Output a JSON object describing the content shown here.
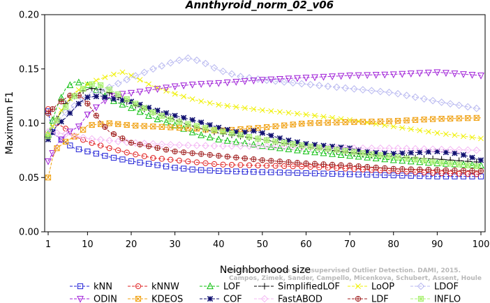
{
  "chart_data": {
    "type": "line",
    "title": "Annthyroid_norm_02_v06",
    "xlabel": "Neighborhood size",
    "ylabel": "Maximum F1",
    "xlim": [
      1,
      100
    ],
    "ylim": [
      0.0,
      0.2
    ],
    "xticks": [
      1,
      10,
      20,
      30,
      40,
      50,
      60,
      70,
      80,
      90,
      100
    ],
    "yticks": [
      "0.00",
      "0.05",
      "0.10",
      "0.15",
      "0.20"
    ],
    "grid": false,
    "legend_position": "bottom",
    "series": [
      {
        "name": "kNN",
        "color": "#1f1fd6",
        "marker": "square",
        "points": [
          [
            1,
            0.111
          ],
          [
            2,
            0.092
          ],
          [
            3,
            0.088
          ],
          [
            5,
            0.082
          ],
          [
            7,
            0.077
          ],
          [
            10,
            0.074
          ],
          [
            15,
            0.069
          ],
          [
            20,
            0.065
          ],
          [
            25,
            0.062
          ],
          [
            30,
            0.059
          ],
          [
            35,
            0.057
          ],
          [
            40,
            0.056
          ],
          [
            50,
            0.055
          ],
          [
            60,
            0.054
          ],
          [
            70,
            0.053
          ],
          [
            80,
            0.052
          ],
          [
            90,
            0.051
          ],
          [
            100,
            0.051
          ]
        ]
      },
      {
        "name": "kNNW",
        "color": "#e02020",
        "marker": "circle",
        "points": [
          [
            1,
            0.113
          ],
          [
            2,
            0.105
          ],
          [
            3,
            0.1
          ],
          [
            5,
            0.095
          ],
          [
            7,
            0.088
          ],
          [
            10,
            0.083
          ],
          [
            15,
            0.077
          ],
          [
            20,
            0.072
          ],
          [
            25,
            0.068
          ],
          [
            30,
            0.066
          ],
          [
            35,
            0.064
          ],
          [
            40,
            0.062
          ],
          [
            50,
            0.061
          ],
          [
            60,
            0.06
          ],
          [
            70,
            0.058
          ],
          [
            80,
            0.056
          ],
          [
            90,
            0.054
          ],
          [
            100,
            0.053
          ]
        ]
      },
      {
        "name": "LOF",
        "color": "#10c010",
        "marker": "triangle",
        "points": [
          [
            1,
            0.09
          ],
          [
            3,
            0.115
          ],
          [
            5,
            0.132
          ],
          [
            7,
            0.138
          ],
          [
            9,
            0.137
          ],
          [
            11,
            0.133
          ],
          [
            13,
            0.128
          ],
          [
            15,
            0.122
          ],
          [
            20,
            0.114
          ],
          [
            25,
            0.105
          ],
          [
            30,
            0.098
          ],
          [
            35,
            0.09
          ],
          [
            40,
            0.085
          ],
          [
            50,
            0.079
          ],
          [
            60,
            0.074
          ],
          [
            70,
            0.07
          ],
          [
            80,
            0.066
          ],
          [
            90,
            0.063
          ],
          [
            100,
            0.061
          ]
        ]
      },
      {
        "name": "SimplifiedLOF",
        "color": "#000000",
        "marker": "plus",
        "points": [
          [
            1,
            0.087
          ],
          [
            3,
            0.104
          ],
          [
            5,
            0.118
          ],
          [
            7,
            0.125
          ],
          [
            9,
            0.13
          ],
          [
            11,
            0.132
          ],
          [
            13,
            0.131
          ],
          [
            15,
            0.128
          ],
          [
            20,
            0.118
          ],
          [
            25,
            0.11
          ],
          [
            30,
            0.103
          ],
          [
            35,
            0.096
          ],
          [
            40,
            0.091
          ],
          [
            50,
            0.085
          ],
          [
            60,
            0.078
          ],
          [
            70,
            0.073
          ],
          [
            80,
            0.069
          ],
          [
            90,
            0.067
          ],
          [
            100,
            0.064
          ]
        ]
      },
      {
        "name": "LoOP",
        "color": "#f0f000",
        "marker": "x",
        "points": [
          [
            1,
            0.09
          ],
          [
            4,
            0.112
          ],
          [
            7,
            0.128
          ],
          [
            10,
            0.136
          ],
          [
            13,
            0.141
          ],
          [
            16,
            0.145
          ],
          [
            18,
            0.147
          ],
          [
            20,
            0.144
          ],
          [
            22,
            0.14
          ],
          [
            25,
            0.134
          ],
          [
            30,
            0.127
          ],
          [
            35,
            0.121
          ],
          [
            40,
            0.117
          ],
          [
            50,
            0.112
          ],
          [
            60,
            0.108
          ],
          [
            70,
            0.103
          ],
          [
            80,
            0.097
          ],
          [
            90,
            0.091
          ],
          [
            100,
            0.086
          ]
        ]
      },
      {
        "name": "LDOF",
        "color": "#b8b8f0",
        "marker": "diamond",
        "points": [
          [
            1,
            0.092
          ],
          [
            5,
            0.11
          ],
          [
            10,
            0.125
          ],
          [
            15,
            0.133
          ],
          [
            20,
            0.142
          ],
          [
            25,
            0.15
          ],
          [
            30,
            0.157
          ],
          [
            33,
            0.16
          ],
          [
            36,
            0.157
          ],
          [
            40,
            0.149
          ],
          [
            45,
            0.143
          ],
          [
            50,
            0.14
          ],
          [
            60,
            0.136
          ],
          [
            70,
            0.132
          ],
          [
            80,
            0.128
          ],
          [
            90,
            0.12
          ],
          [
            100,
            0.113
          ]
        ]
      },
      {
        "name": "ODIN",
        "color": "#a020d8",
        "marker": "triangle-down",
        "points": [
          [
            1,
            0.065
          ],
          [
            3,
            0.08
          ],
          [
            5,
            0.09
          ],
          [
            8,
            0.097
          ],
          [
            10,
            0.108
          ],
          [
            13,
            0.118
          ],
          [
            15,
            0.124
          ],
          [
            18,
            0.127
          ],
          [
            22,
            0.129
          ],
          [
            25,
            0.131
          ],
          [
            30,
            0.134
          ],
          [
            35,
            0.136
          ],
          [
            40,
            0.137
          ],
          [
            50,
            0.14
          ],
          [
            60,
            0.142
          ],
          [
            70,
            0.144
          ],
          [
            80,
            0.145
          ],
          [
            90,
            0.147
          ],
          [
            100,
            0.144
          ]
        ]
      },
      {
        "name": "KDEOS",
        "color": "#f0a010",
        "marker": "square-x",
        "points": [
          [
            1,
            0.05
          ],
          [
            2,
            0.068
          ],
          [
            3,
            0.077
          ],
          [
            5,
            0.083
          ],
          [
            8,
            0.09
          ],
          [
            10,
            0.098
          ],
          [
            15,
            0.1
          ],
          [
            20,
            0.098
          ],
          [
            25,
            0.097
          ],
          [
            30,
            0.096
          ],
          [
            35,
            0.095
          ],
          [
            40,
            0.093
          ],
          [
            50,
            0.096
          ],
          [
            60,
            0.1
          ],
          [
            70,
            0.101
          ],
          [
            80,
            0.102
          ],
          [
            90,
            0.104
          ],
          [
            100,
            0.105
          ]
        ]
      },
      {
        "name": "COF",
        "color": "#101070",
        "marker": "star",
        "points": [
          [
            1,
            0.085
          ],
          [
            3,
            0.098
          ],
          [
            5,
            0.105
          ],
          [
            8,
            0.118
          ],
          [
            10,
            0.124
          ],
          [
            13,
            0.125
          ],
          [
            15,
            0.123
          ],
          [
            20,
            0.12
          ],
          [
            25,
            0.113
          ],
          [
            30,
            0.107
          ],
          [
            35,
            0.102
          ],
          [
            40,
            0.096
          ],
          [
            45,
            0.091
          ],
          [
            48,
            0.093
          ],
          [
            50,
            0.091
          ],
          [
            55,
            0.085
          ],
          [
            60,
            0.081
          ],
          [
            65,
            0.079
          ],
          [
            70,
            0.077
          ],
          [
            75,
            0.073
          ],
          [
            80,
            0.072
          ],
          [
            85,
            0.073
          ],
          [
            90,
            0.074
          ],
          [
            95,
            0.072
          ],
          [
            100,
            0.066
          ]
        ]
      },
      {
        "name": "FastABOD",
        "color": "#f4b8f4",
        "marker": "diamond",
        "points": [
          [
            1,
            0.092
          ],
          [
            5,
            0.09
          ],
          [
            10,
            0.086
          ],
          [
            15,
            0.084
          ],
          [
            20,
            0.082
          ],
          [
            30,
            0.08
          ],
          [
            40,
            0.079
          ],
          [
            50,
            0.079
          ],
          [
            60,
            0.078
          ],
          [
            70,
            0.077
          ],
          [
            80,
            0.077
          ],
          [
            90,
            0.076
          ],
          [
            100,
            0.075
          ]
        ]
      },
      {
        "name": "LDF",
        "color": "#a02020",
        "marker": "circle-plus",
        "points": [
          [
            1,
            0.109
          ],
          [
            3,
            0.117
          ],
          [
            5,
            0.123
          ],
          [
            7,
            0.128
          ],
          [
            9,
            0.123
          ],
          [
            11,
            0.113
          ],
          [
            13,
            0.101
          ],
          [
            15,
            0.092
          ],
          [
            20,
            0.082
          ],
          [
            25,
            0.078
          ],
          [
            30,
            0.074
          ],
          [
            40,
            0.07
          ],
          [
            50,
            0.066
          ],
          [
            60,
            0.063
          ],
          [
            70,
            0.061
          ],
          [
            80,
            0.058
          ],
          [
            90,
            0.057
          ],
          [
            100,
            0.056
          ]
        ]
      },
      {
        "name": "INFLO",
        "color": "#a8f070",
        "marker": "square-star",
        "points": [
          [
            1,
            0.088
          ],
          [
            4,
            0.11
          ],
          [
            7,
            0.125
          ],
          [
            10,
            0.135
          ],
          [
            12,
            0.137
          ],
          [
            15,
            0.131
          ],
          [
            20,
            0.12
          ],
          [
            25,
            0.11
          ],
          [
            30,
            0.102
          ],
          [
            40,
            0.093
          ],
          [
            50,
            0.085
          ],
          [
            60,
            0.079
          ],
          [
            70,
            0.074
          ],
          [
            80,
            0.069
          ],
          [
            90,
            0.064
          ],
          [
            100,
            0.06
          ]
        ]
      }
    ],
    "credit": [
      "Campos, Zimek, Sander, Campello, Micenkova, Schubert, Assent, Houle",
      "On the Evaluation of Unsupervised Outlier Detection. DAMI, 2015."
    ]
  }
}
